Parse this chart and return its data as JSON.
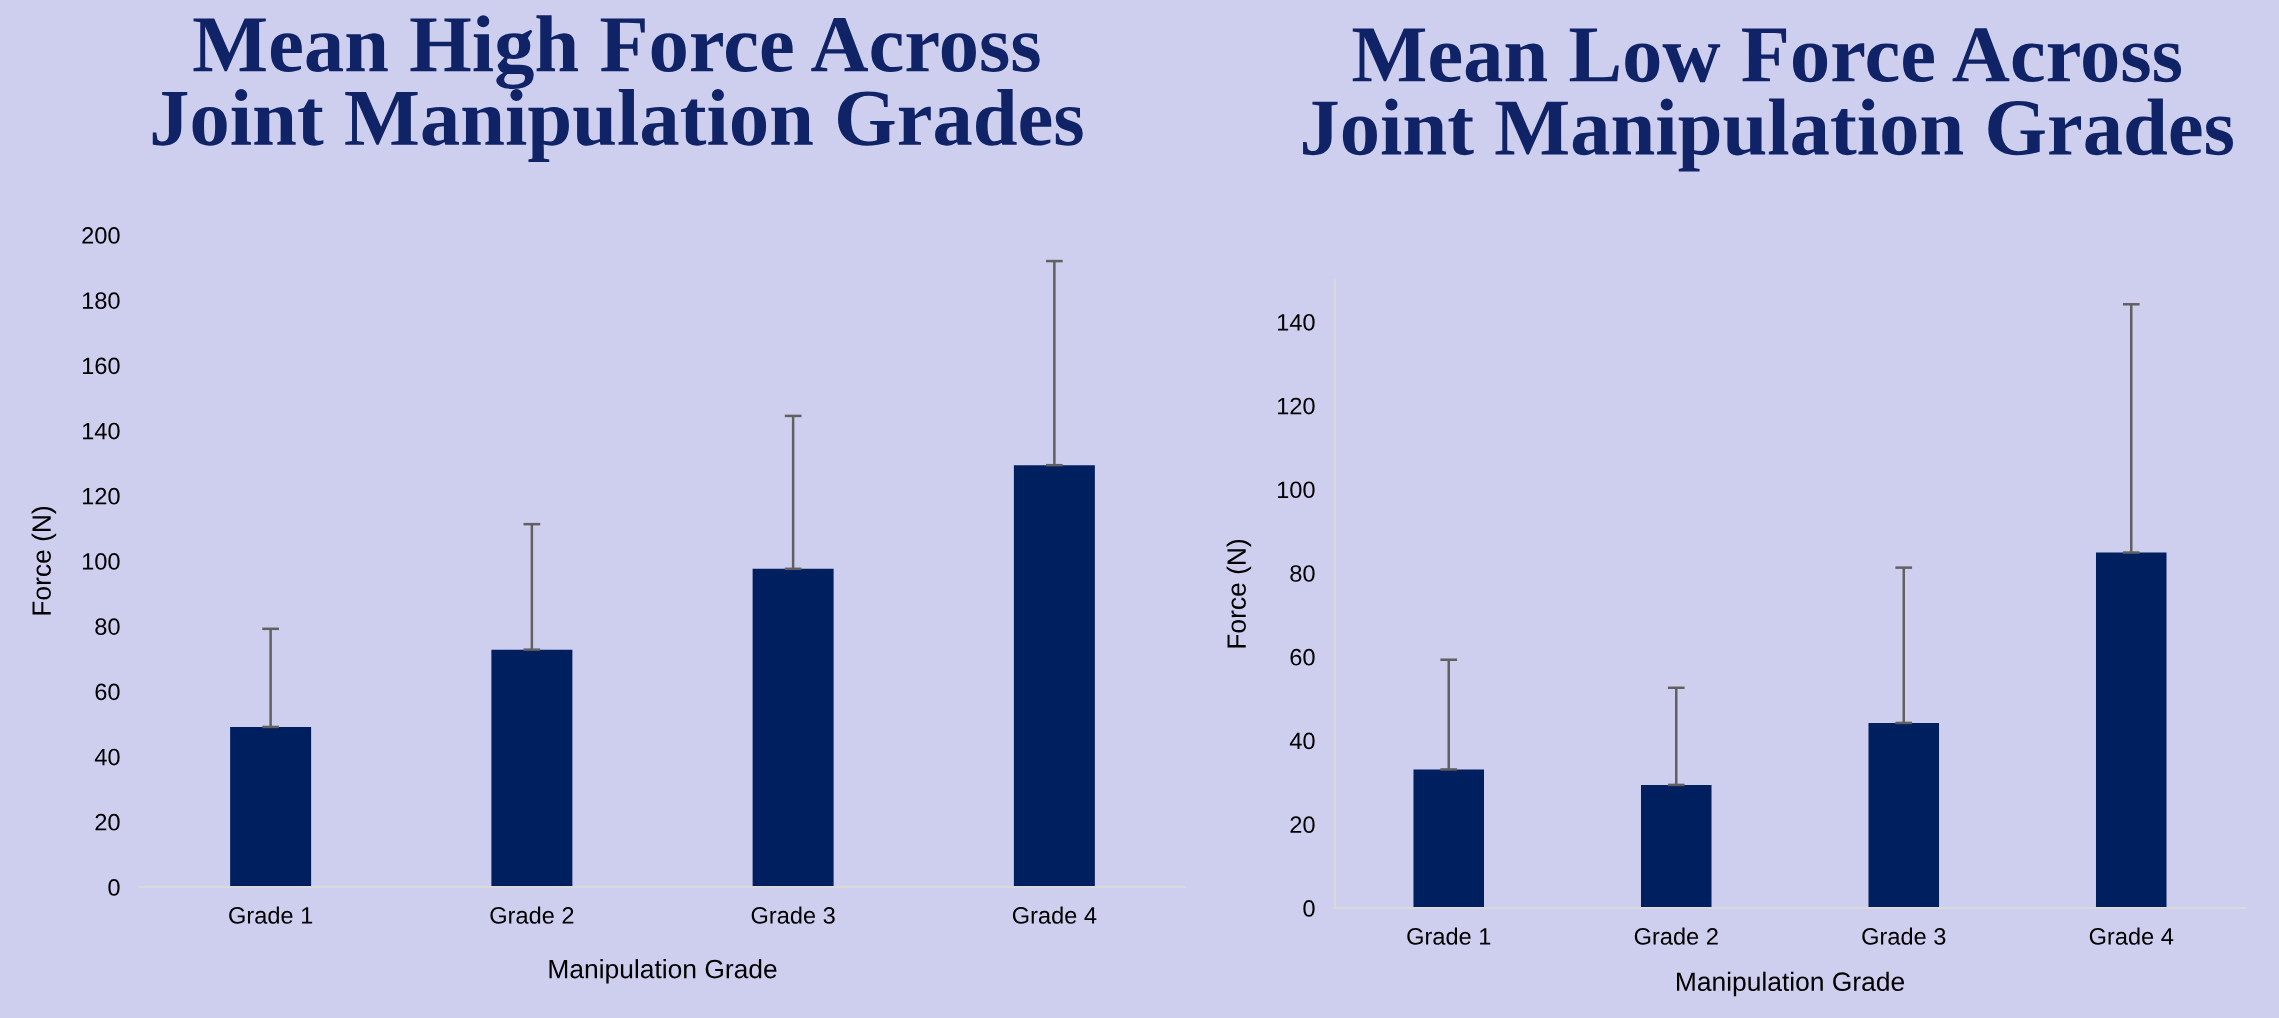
{
  "chart_data": [
    {
      "type": "bar",
      "title": "Mean High Force Across\nJoint Manipulation Grades",
      "xlabel": "Manipulation Grade",
      "ylabel": "Force (N)",
      "categories": [
        "Grade 1",
        "Grade 2",
        "Grade 3",
        "Grade 4"
      ],
      "values": [
        49.1,
        72.8,
        97.6,
        129.4
      ],
      "color": "#001f5f",
      "errors": [
        [
          49.1,
          79.2
        ],
        [
          72.8,
          111.3
        ],
        [
          97.6,
          144.5
        ],
        [
          129.4,
          192.0
        ]
      ],
      "ylim": [
        0,
        200
      ],
      "yticks": [
        0,
        20,
        40,
        60,
        80,
        100,
        120,
        140,
        160,
        180,
        200
      ],
      "grid": false
    },
    {
      "type": "bar",
      "title": "Mean Low Force Across\nJoint Manipulation Grades",
      "xlabel": "Manipulation Grade",
      "ylabel": "Force (N)",
      "categories": [
        "Grade 1",
        "Grade 2",
        "Grade 3",
        "Grade 4"
      ],
      "values": [
        33.1,
        29.4,
        44.2,
        84.9
      ],
      "color": "#001f5f",
      "errors": [
        [
          33.1,
          59.3
        ],
        [
          29.4,
          52.6
        ],
        [
          44.2,
          81.3
        ],
        [
          84.9,
          144.2
        ]
      ],
      "ylim": [
        0,
        150
      ],
      "yticks": [
        0,
        20,
        40,
        60,
        80,
        100,
        120,
        140
      ],
      "grid": false
    }
  ]
}
